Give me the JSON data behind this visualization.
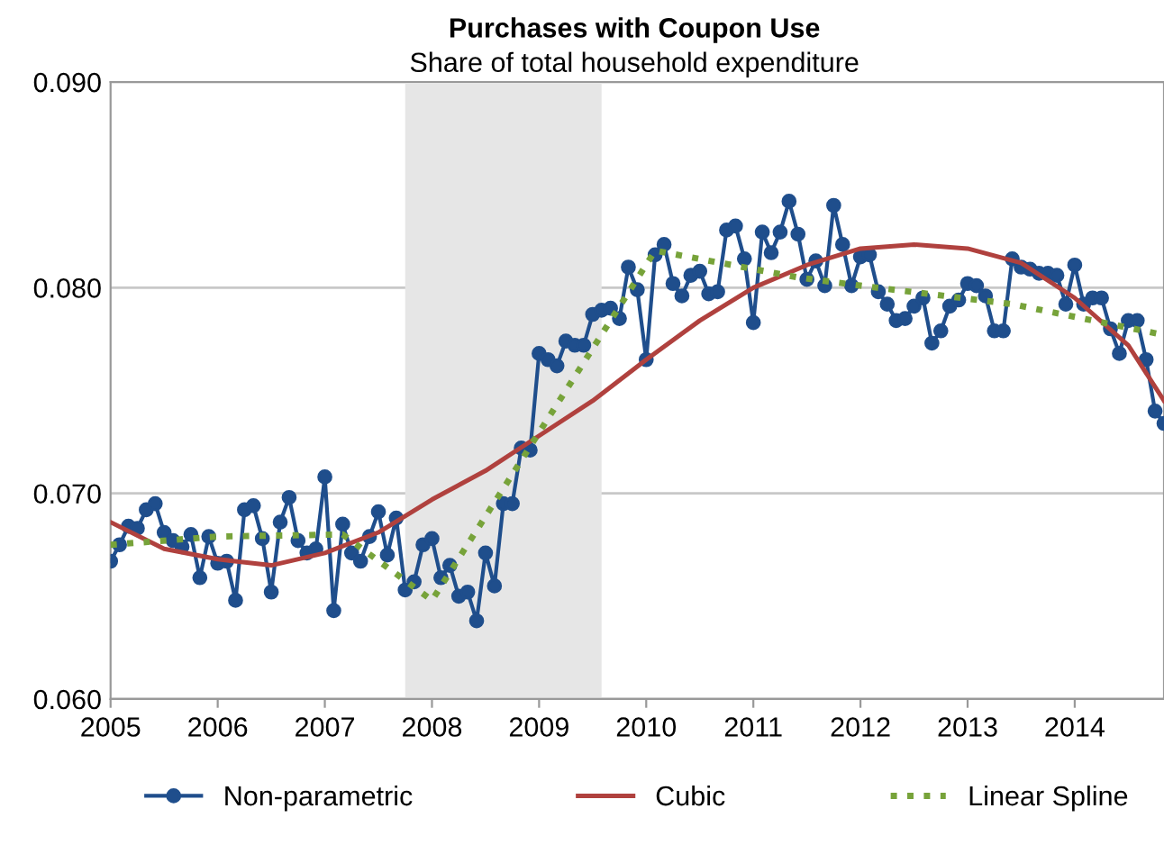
{
  "chart_data": {
    "type": "line",
    "title": "Purchases with Coupon Use",
    "subtitle": "Share of total household expenditure",
    "x": [
      "2005-01",
      "2005-02",
      "2005-03",
      "2005-04",
      "2005-05",
      "2005-06",
      "2005-07",
      "2005-08",
      "2005-09",
      "2005-10",
      "2005-11",
      "2005-12",
      "2006-01",
      "2006-02",
      "2006-03",
      "2006-04",
      "2006-05",
      "2006-06",
      "2006-07",
      "2006-08",
      "2006-09",
      "2006-10",
      "2006-11",
      "2006-12",
      "2007-01",
      "2007-02",
      "2007-03",
      "2007-04",
      "2007-05",
      "2007-06",
      "2007-07",
      "2007-08",
      "2007-09",
      "2007-10",
      "2007-11",
      "2007-12",
      "2008-01",
      "2008-02",
      "2008-03",
      "2008-04",
      "2008-05",
      "2008-06",
      "2008-07",
      "2008-08",
      "2008-09",
      "2008-10",
      "2008-11",
      "2008-12",
      "2009-01",
      "2009-02",
      "2009-03",
      "2009-04",
      "2009-05",
      "2009-06",
      "2009-07",
      "2009-08",
      "2009-09",
      "2009-10",
      "2009-11",
      "2009-12",
      "2010-01",
      "2010-02",
      "2010-03",
      "2010-04",
      "2010-05",
      "2010-06",
      "2010-07",
      "2010-08",
      "2010-09",
      "2010-10",
      "2010-11",
      "2010-12",
      "2011-01",
      "2011-02",
      "2011-03",
      "2011-04",
      "2011-05",
      "2011-06",
      "2011-07",
      "2011-08",
      "2011-09",
      "2011-10",
      "2011-11",
      "2011-12",
      "2012-01",
      "2012-02",
      "2012-03",
      "2012-04",
      "2012-05",
      "2012-06",
      "2012-07",
      "2012-08",
      "2012-09",
      "2012-10",
      "2012-11",
      "2012-12",
      "2013-01",
      "2013-02",
      "2013-03",
      "2013-04",
      "2013-05",
      "2013-06",
      "2013-07",
      "2013-08",
      "2013-09",
      "2013-10",
      "2013-11",
      "2013-12",
      "2014-01",
      "2014-02",
      "2014-03",
      "2014-04",
      "2014-05",
      "2014-06",
      "2014-07",
      "2014-08",
      "2014-09",
      "2014-10",
      "2014-11"
    ],
    "series": [
      {
        "name": "Non-parametric",
        "color": "#1f4e8c",
        "marker": "circle",
        "line_style": "solid",
        "values": [
          0.0667,
          0.0675,
          0.0684,
          0.0683,
          0.0692,
          0.0695,
          0.0681,
          0.0677,
          0.0674,
          0.068,
          0.0659,
          0.0679,
          0.0666,
          0.0667,
          0.0648,
          0.0692,
          0.0694,
          0.0678,
          0.0652,
          0.0686,
          0.0698,
          0.0677,
          0.0671,
          0.0673,
          0.0708,
          0.0643,
          0.0685,
          0.0671,
          0.0667,
          0.0679,
          0.0691,
          0.067,
          0.0688,
          0.0653,
          0.0657,
          0.0675,
          0.0678,
          0.0659,
          0.0665,
          0.065,
          0.0652,
          0.0638,
          0.0671,
          0.0655,
          0.0695,
          0.0695,
          0.0722,
          0.0721,
          0.0768,
          0.0765,
          0.0762,
          0.0774,
          0.0772,
          0.0772,
          0.0787,
          0.0789,
          0.079,
          0.0785,
          0.081,
          0.0799,
          0.0765,
          0.0816,
          0.0821,
          0.0802,
          0.0796,
          0.0806,
          0.0808,
          0.0797,
          0.0798,
          0.0828,
          0.083,
          0.0814,
          0.0783,
          0.0827,
          0.0817,
          0.0827,
          0.0842,
          0.0826,
          0.0804,
          0.0813,
          0.0801,
          0.084,
          0.0821,
          0.0801,
          0.0815,
          0.0816,
          0.0798,
          0.0792,
          0.0784,
          0.0785,
          0.0791,
          0.0795,
          0.0773,
          0.0779,
          0.0791,
          0.0794,
          0.0802,
          0.0801,
          0.0796,
          0.0779,
          0.0779,
          0.0814,
          0.081,
          0.0809,
          0.0807,
          0.0807,
          0.0806,
          0.0792,
          0.0811,
          0.0792,
          0.0795,
          0.0795,
          0.078,
          0.0768,
          0.0784,
          0.0784,
          0.0765,
          0.074,
          0.0734
        ]
      },
      {
        "name": "Cubic",
        "color": "#b0413e",
        "marker": "none",
        "line_style": "solid",
        "x": [
          "2005-01",
          "2005-07",
          "2006-01",
          "2006-07",
          "2007-01",
          "2007-07",
          "2008-01",
          "2008-07",
          "2009-01",
          "2009-07",
          "2010-01",
          "2010-07",
          "2011-01",
          "2011-07",
          "2012-01",
          "2012-07",
          "2013-01",
          "2013-07",
          "2014-01",
          "2014-07",
          "2014-11"
        ],
        "values": [
          0.0686,
          0.0673,
          0.0668,
          0.0665,
          0.0671,
          0.0681,
          0.0697,
          0.0711,
          0.0728,
          0.0745,
          0.0765,
          0.0784,
          0.08,
          0.0811,
          0.0819,
          0.0821,
          0.0819,
          0.0812,
          0.0795,
          0.0772,
          0.0745
        ]
      },
      {
        "name": "Linear Spline",
        "color": "#77a33a",
        "marker": "none",
        "line_style": "dotted",
        "x": [
          "2005-01",
          "2006-01",
          "2007-03",
          "2008-01",
          "2010-02",
          "2011-06",
          "2012-01",
          "2013-06",
          "2014-11"
        ],
        "values": [
          0.0675,
          0.0679,
          0.068,
          0.0648,
          0.0818,
          0.0805,
          0.0801,
          0.0792,
          0.0777
        ]
      }
    ],
    "xlim": [
      "2005-01",
      "2014-11"
    ],
    "xticks": [
      {
        "value": "2005-01",
        "label": "2005"
      },
      {
        "value": "2006-01",
        "label": "2006"
      },
      {
        "value": "2007-01",
        "label": "2007"
      },
      {
        "value": "2008-01",
        "label": "2008"
      },
      {
        "value": "2009-01",
        "label": "2009"
      },
      {
        "value": "2010-01",
        "label": "2010"
      },
      {
        "value": "2011-01",
        "label": "2011"
      },
      {
        "value": "2012-01",
        "label": "2012"
      },
      {
        "value": "2013-01",
        "label": "2013"
      },
      {
        "value": "2014-01",
        "label": "2014"
      }
    ],
    "ylim": [
      0.06,
      0.09
    ],
    "yticks": [
      {
        "value": 0.06,
        "label": "0.060"
      },
      {
        "value": 0.07,
        "label": "0.070"
      },
      {
        "value": 0.08,
        "label": "0.080"
      },
      {
        "value": 0.09,
        "label": "0.090"
      }
    ],
    "bands": [
      {
        "axis": "x",
        "from": "2007-10",
        "to": "2009-08",
        "color": "#e6e6e6"
      }
    ],
    "grid": "y",
    "legend": "bottom"
  }
}
